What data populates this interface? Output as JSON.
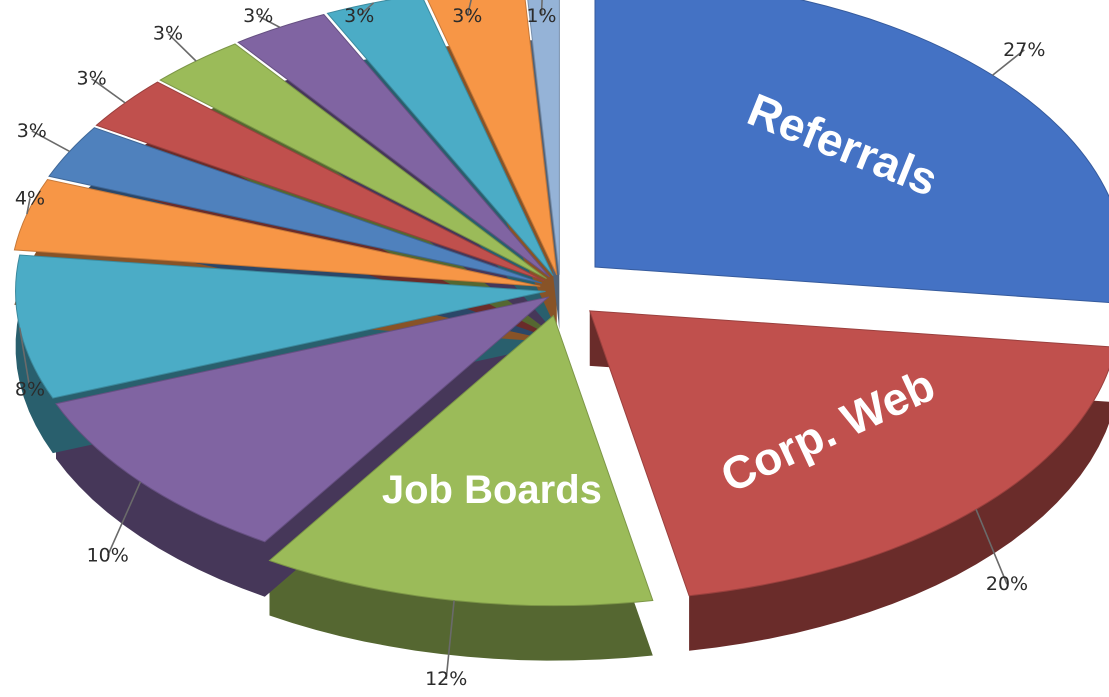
{
  "chart_data": {
    "type": "pie",
    "style": "3d-exploded",
    "title": "",
    "legend": "none",
    "slices": [
      {
        "label": "Referrals",
        "value": 27,
        "value_label": "27%",
        "color": "#4472c4"
      },
      {
        "label": "Corp. Web",
        "value": 20,
        "value_label": "20%",
        "color": "#c0504d"
      },
      {
        "label": "Job Boards",
        "value": 12,
        "value_label": "12%",
        "color": "#9bbb59"
      },
      {
        "label": "",
        "value": 10,
        "value_label": "10%",
        "color": "#8064a2"
      },
      {
        "label": "",
        "value": 8,
        "value_label": "8%",
        "color": "#4bacc6"
      },
      {
        "label": "",
        "value": 4,
        "value_label": "4%",
        "color": "#f79646"
      },
      {
        "label": "",
        "value": 3,
        "value_label": "3%",
        "color": "#4f81bd"
      },
      {
        "label": "",
        "value": 3,
        "value_label": "3%",
        "color": "#c0504d"
      },
      {
        "label": "",
        "value": 3,
        "value_label": "3%",
        "color": "#9bbb59"
      },
      {
        "label": "",
        "value": 3,
        "value_label": "3%",
        "color": "#8064a2"
      },
      {
        "label": "",
        "value": 3,
        "value_label": "3%",
        "color": "#4bacc6"
      },
      {
        "label": "",
        "value": 3,
        "value_label": "3%",
        "color": "#f79646"
      },
      {
        "label": "",
        "value": 1,
        "value_label": "1%",
        "color": "#95b3d7"
      }
    ]
  }
}
